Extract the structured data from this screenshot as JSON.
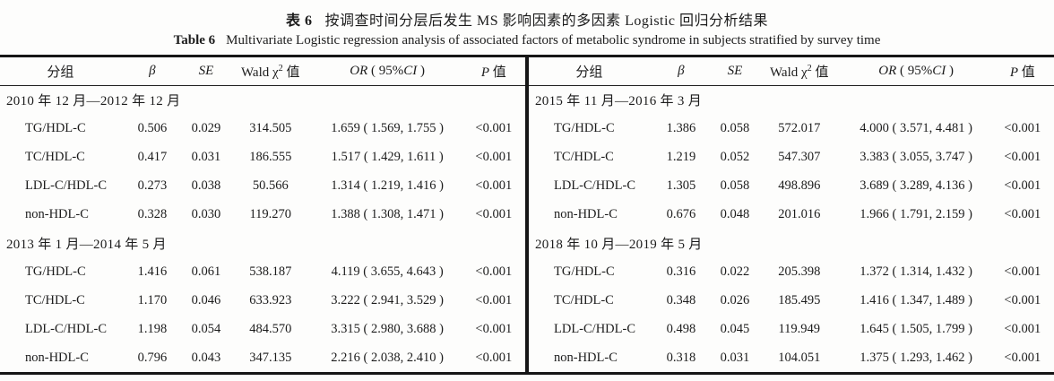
{
  "caption": {
    "zh_label": "表 6",
    "zh_title": "按调查时间分层后发生 MS 影响因素的多因素 Logistic 回归分析结果",
    "en_label": "Table 6",
    "en_title": "Multivariate Logistic regression analysis of associated factors of metabolic syndrome in subjects stratified by survey time"
  },
  "colors": {
    "rule": "#161616",
    "text": "#1c1c1c",
    "background": "#fdfdfc"
  },
  "table": {
    "header_cells": [
      {
        "name": "col-header-group",
        "segs": [
          {
            "t": "分组"
          }
        ]
      },
      {
        "name": "col-header-beta",
        "segs": [
          {
            "t": "β",
            "i": true
          }
        ]
      },
      {
        "name": "col-header-se",
        "segs": [
          {
            "t": "SE",
            "i": true
          }
        ]
      },
      {
        "name": "col-header-wald",
        "segs": [
          {
            "t": "Wald χ"
          },
          {
            "t": "2",
            "sup": true
          },
          {
            "t": " 值"
          }
        ]
      },
      {
        "name": "col-header-or",
        "segs": [
          {
            "t": "OR",
            "i": true
          },
          {
            "t": " ( 95%"
          },
          {
            "t": "CI",
            "i": true
          },
          {
            "t": " )"
          }
        ]
      },
      {
        "name": "col-header-p",
        "segs": [
          {
            "t": "P",
            "i": true
          },
          {
            "t": " 值"
          }
        ]
      }
    ],
    "panels": [
      {
        "name": "left-panel",
        "groups": [
          {
            "period": "2010 年 12 月—2012 年 12 月",
            "rows": [
              {
                "factor": "TG/HDL-C",
                "beta": "0.506",
                "se": "0.029",
                "wald": "314.505",
                "or_ci": "1.659 ( 1.569,  1.755 )",
                "p": "<0.001"
              },
              {
                "factor": "TC/HDL-C",
                "beta": "0.417",
                "se": "0.031",
                "wald": "186.555",
                "or_ci": "1.517 ( 1.429,  1.611 )",
                "p": "<0.001"
              },
              {
                "factor": "LDL-C/HDL-C",
                "beta": "0.273",
                "se": "0.038",
                "wald": "50.566",
                "or_ci": "1.314 ( 1.219,  1.416 )",
                "p": "<0.001"
              },
              {
                "factor": "non-HDL-C",
                "beta": "0.328",
                "se": "0.030",
                "wald": "119.270",
                "or_ci": "1.388 ( 1.308,  1.471 )",
                "p": "<0.001"
              }
            ]
          },
          {
            "period": "2013 年 1 月—2014 年 5 月",
            "rows": [
              {
                "factor": "TG/HDL-C",
                "beta": "1.416",
                "se": "0.061",
                "wald": "538.187",
                "or_ci": "4.119 ( 3.655,  4.643 )",
                "p": "<0.001"
              },
              {
                "factor": "TC/HDL-C",
                "beta": "1.170",
                "se": "0.046",
                "wald": "633.923",
                "or_ci": "3.222 ( 2.941,  3.529 )",
                "p": "<0.001"
              },
              {
                "factor": "LDL-C/HDL-C",
                "beta": "1.198",
                "se": "0.054",
                "wald": "484.570",
                "or_ci": "3.315 ( 2.980,  3.688 )",
                "p": "<0.001"
              },
              {
                "factor": "non-HDL-C",
                "beta": "0.796",
                "se": "0.043",
                "wald": "347.135",
                "or_ci": "2.216 ( 2.038,  2.410 )",
                "p": "<0.001"
              }
            ]
          }
        ]
      },
      {
        "name": "right-panel",
        "groups": [
          {
            "period": "2015 年 11 月—2016 年 3 月",
            "rows": [
              {
                "factor": "TG/HDL-C",
                "beta": "1.386",
                "se": "0.058",
                "wald": "572.017",
                "or_ci": "4.000 ( 3.571,  4.481 )",
                "p": "<0.001"
              },
              {
                "factor": "TC/HDL-C",
                "beta": "1.219",
                "se": "0.052",
                "wald": "547.307",
                "or_ci": "3.383 ( 3.055,  3.747 )",
                "p": "<0.001"
              },
              {
                "factor": "LDL-C/HDL-C",
                "beta": "1.305",
                "se": "0.058",
                "wald": "498.896",
                "or_ci": "3.689 ( 3.289,  4.136 )",
                "p": "<0.001"
              },
              {
                "factor": "non-HDL-C",
                "beta": "0.676",
                "se": "0.048",
                "wald": "201.016",
                "or_ci": "1.966 ( 1.791,  2.159 )",
                "p": "<0.001"
              }
            ]
          },
          {
            "period": "2018 年 10 月—2019 年 5 月",
            "rows": [
              {
                "factor": "TG/HDL-C",
                "beta": "0.316",
                "se": "0.022",
                "wald": "205.398",
                "or_ci": "1.372 ( 1.314,  1.432 )",
                "p": "<0.001"
              },
              {
                "factor": "TC/HDL-C",
                "beta": "0.348",
                "se": "0.026",
                "wald": "185.495",
                "or_ci": "1.416 ( 1.347,  1.489 )",
                "p": "<0.001"
              },
              {
                "factor": "LDL-C/HDL-C",
                "beta": "0.498",
                "se": "0.045",
                "wald": "119.949",
                "or_ci": "1.645 ( 1.505,  1.799 )",
                "p": "<0.001"
              },
              {
                "factor": "non-HDL-C",
                "beta": "0.318",
                "se": "0.031",
                "wald": "104.051",
                "or_ci": "1.375 ( 1.293,  1.462 )",
                "p": "<0.001"
              }
            ]
          }
        ]
      }
    ]
  }
}
